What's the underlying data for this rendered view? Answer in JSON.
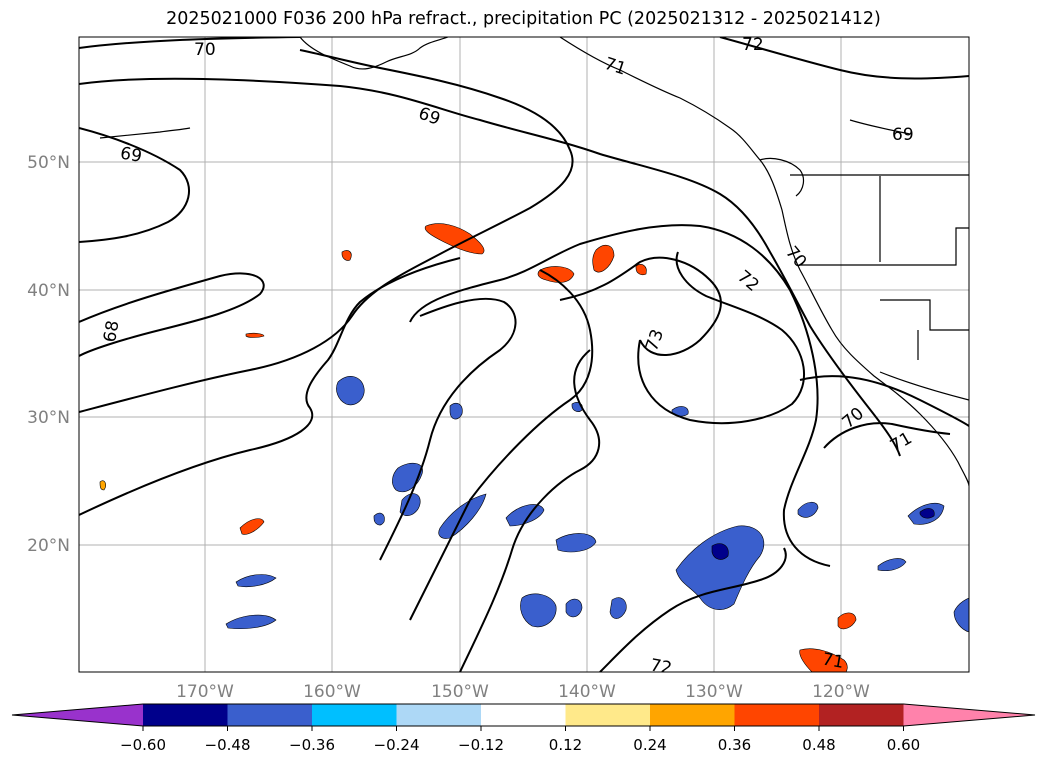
{
  "title": "2025021000 F036 200 hPa refract., precipitation PC (2025021312 - 2025021412)",
  "map": {
    "lon_ticks": [
      "170°W",
      "160°W",
      "150°W",
      "140°W",
      "130°W",
      "120°W"
    ],
    "lat_ticks": [
      "50°N",
      "40°N",
      "30°N",
      "20°N"
    ],
    "grid": true,
    "contour_color": "#000000",
    "contour_labels": [
      "70",
      "72",
      "69",
      "71",
      "69",
      "69",
      "68",
      "73",
      "72",
      "70",
      "70",
      "71",
      "72",
      "71"
    ]
  },
  "colorbar": {
    "ticks": [
      "−0.60",
      "−0.48",
      "−0.36",
      "−0.24",
      "−0.12",
      "0.12",
      "0.24",
      "0.36",
      "0.48",
      "0.60"
    ],
    "colors": [
      "#9932CC",
      "#00008B",
      "#3A5FCD",
      "#00BFFF",
      "#ADD8F6",
      "#FFFFFF",
      "#FFE98A",
      "#FFA500",
      "#FF4500",
      "#B22222",
      "#FF82AB"
    ]
  }
}
